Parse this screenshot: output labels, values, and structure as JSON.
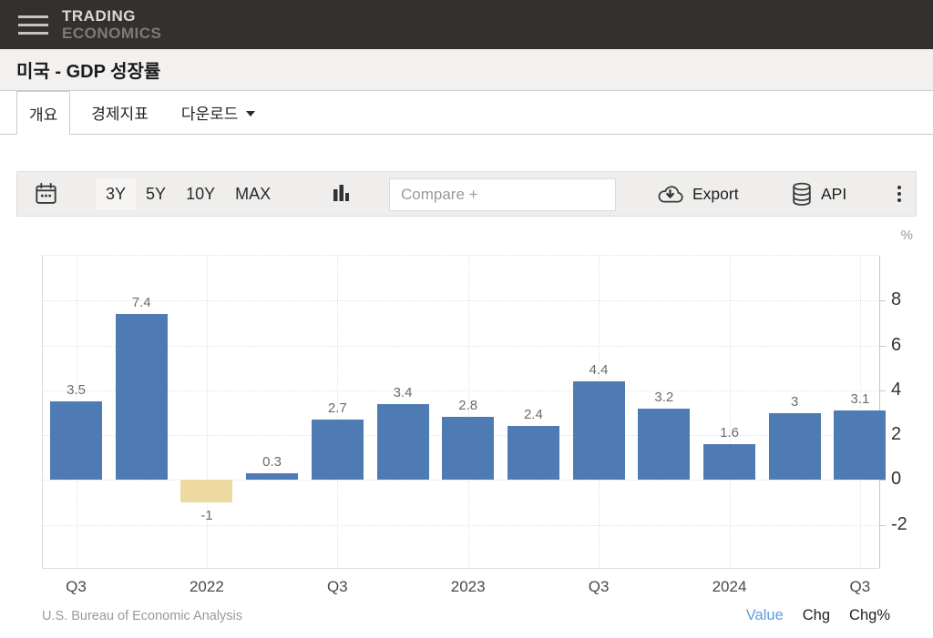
{
  "header": {
    "brand_line1": "TRADING",
    "brand_line2": "ECONOMICS"
  },
  "page": {
    "title": "미국 - GDP 성장률"
  },
  "tabs": [
    {
      "label": "개요",
      "active": true
    },
    {
      "label": "경제지표",
      "active": false
    },
    {
      "label": "다운로드",
      "active": false,
      "has_dropdown": true
    }
  ],
  "toolbar": {
    "ranges": [
      {
        "label": "3Y",
        "active": true
      },
      {
        "label": "5Y",
        "active": false
      },
      {
        "label": "10Y",
        "active": false
      },
      {
        "label": "MAX",
        "active": false
      }
    ],
    "compare_placeholder": "Compare +",
    "export_label": "Export",
    "api_label": "API"
  },
  "chart_data": {
    "type": "bar",
    "title": "미국 - GDP 성장률",
    "unit": "%",
    "values": [
      3.5,
      7.4,
      -1,
      0.3,
      2.7,
      3.4,
      2.8,
      2.4,
      4.4,
      3.2,
      1.6,
      3,
      3.1
    ],
    "value_labels": [
      "3.5",
      "7.4",
      "-1",
      "0.3",
      "2.7",
      "3.4",
      "2.8",
      "2.4",
      "4.4",
      "3.2",
      "1.6",
      "3",
      "3.1"
    ],
    "x_ticks": [
      {
        "i": 0,
        "label": "Q3"
      },
      {
        "i": 2,
        "label": "2022"
      },
      {
        "i": 4,
        "label": "Q3"
      },
      {
        "i": 6,
        "label": "2023"
      },
      {
        "i": 8,
        "label": "Q3"
      },
      {
        "i": 10,
        "label": "2024"
      },
      {
        "i": 12,
        "label": "Q3"
      }
    ],
    "y_ticks": [
      8,
      6,
      4,
      2,
      0,
      -2
    ],
    "ylim": [
      -4,
      10
    ],
    "bar_color": "#4e7bb4",
    "negative_bar_color": "#eed9a3",
    "grid": true,
    "legend": "none"
  },
  "footer": {
    "source": "U.S. Bureau of Economic Analysis",
    "links": [
      {
        "label": "Value",
        "active": true
      },
      {
        "label": "Chg",
        "active": false
      },
      {
        "label": "Chg%",
        "active": false
      }
    ]
  }
}
